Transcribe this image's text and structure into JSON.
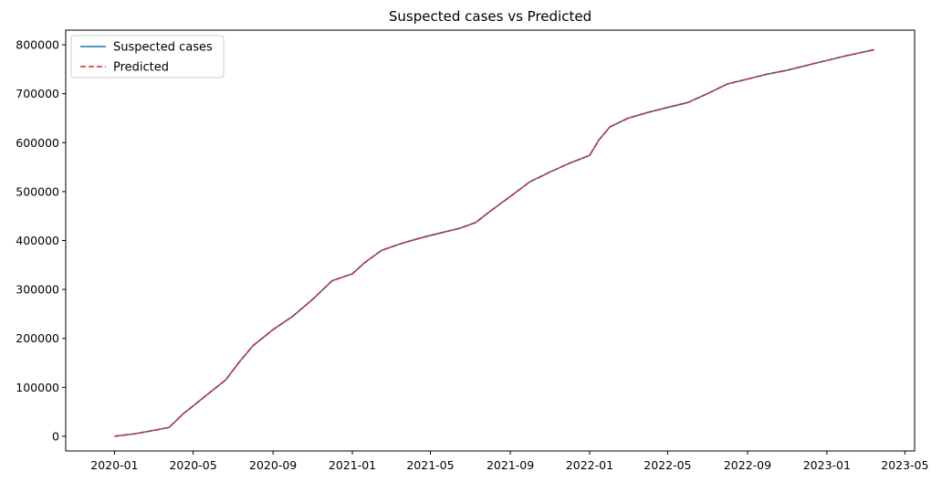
{
  "chart_data": {
    "type": "line",
    "title": "Suspected cases vs Predicted",
    "xlabel": "",
    "ylabel": "",
    "x_axis_type": "date",
    "xlim": [
      "2019-10-18",
      "2023-05-16"
    ],
    "ylim": [
      -30000,
      830000
    ],
    "x_ticks": [
      "2020-01",
      "2020-05",
      "2020-09",
      "2021-01",
      "2021-05",
      "2021-09",
      "2022-01",
      "2022-05",
      "2022-09",
      "2023-01",
      "2023-05"
    ],
    "y_ticks": [
      0,
      100000,
      200000,
      300000,
      400000,
      500000,
      600000,
      700000,
      800000
    ],
    "grid": false,
    "legend_position": "top-left",
    "x": [
      "2020-01-01",
      "2020-02-01",
      "2020-03-01",
      "2020-03-25",
      "2020-04-15",
      "2020-05-01",
      "2020-06-01",
      "2020-06-20",
      "2020-07-10",
      "2020-08-01",
      "2020-09-01",
      "2020-10-01",
      "2020-11-01",
      "2020-12-01",
      "2021-01-01",
      "2021-01-20",
      "2021-02-15",
      "2021-03-15",
      "2021-04-15",
      "2021-05-15",
      "2021-06-15",
      "2021-07-10",
      "2021-08-01",
      "2021-09-01",
      "2021-10-01",
      "2021-11-01",
      "2021-12-01",
      "2022-01-01",
      "2022-01-15",
      "2022-02-01",
      "2022-03-01",
      "2022-04-01",
      "2022-05-01",
      "2022-06-01",
      "2022-07-01",
      "2022-08-01",
      "2022-09-01",
      "2022-10-01",
      "2022-11-01",
      "2022-12-01",
      "2023-01-01",
      "2023-02-01",
      "2023-03-15"
    ],
    "series": [
      {
        "name": "Suspected cases",
        "color": "#1f77b4",
        "style": "solid",
        "values": [
          0,
          5000,
          12000,
          18000,
          45000,
          62000,
          95000,
          115000,
          150000,
          185000,
          218000,
          245000,
          280000,
          318000,
          332000,
          355000,
          380000,
          393000,
          405000,
          415000,
          425000,
          437000,
          460000,
          490000,
          520000,
          540000,
          558000,
          574000,
          605000,
          632000,
          650000,
          662000,
          672000,
          682000,
          700000,
          720000,
          730000,
          740000,
          748000,
          758000,
          768000,
          778000,
          790000
        ]
      },
      {
        "name": "Predicted",
        "color": "#d62728",
        "style": "dashed",
        "values": [
          0,
          5000,
          12000,
          18000,
          45000,
          62000,
          95000,
          115000,
          150000,
          185000,
          218000,
          245000,
          280000,
          318000,
          332000,
          355000,
          380000,
          393000,
          405000,
          415000,
          425000,
          437000,
          460000,
          490000,
          520000,
          540000,
          558000,
          574000,
          605000,
          632000,
          650000,
          662000,
          672000,
          682000,
          700000,
          720000,
          730000,
          740000,
          748000,
          758000,
          768000,
          778000,
          790000
        ]
      }
    ]
  }
}
